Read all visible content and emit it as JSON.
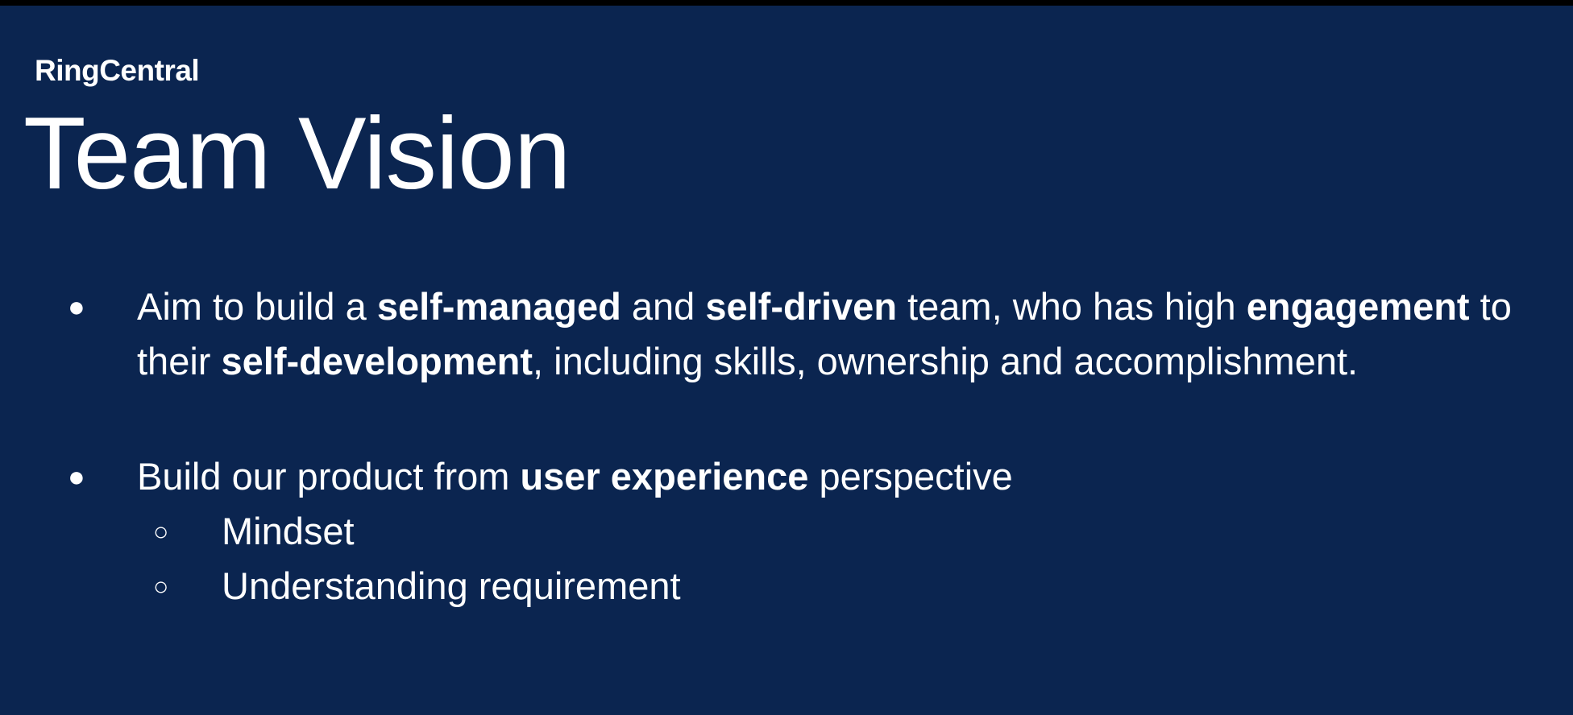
{
  "brand": {
    "logo_text": "RingCentral"
  },
  "slide": {
    "title": "Team Vision",
    "bullet1": {
      "marker": "●",
      "parts": [
        "Aim to build a ",
        "self-managed",
        " and ",
        "self-driven",
        " team, who has high ",
        "engagement",
        " to their ",
        "self-development",
        ", including skills, ownership and accomplishment."
      ]
    },
    "bullet2": {
      "marker": "●",
      "parts": [
        "Build our product from ",
        "user experience",
        " perspective"
      ],
      "subitems": [
        {
          "marker": "○",
          "label": "Mindset"
        },
        {
          "marker": "○",
          "label": "Understanding requirement"
        }
      ]
    }
  },
  "colors": {
    "background": "#0b2550",
    "text": "#ffffff",
    "frame": "#000000"
  }
}
